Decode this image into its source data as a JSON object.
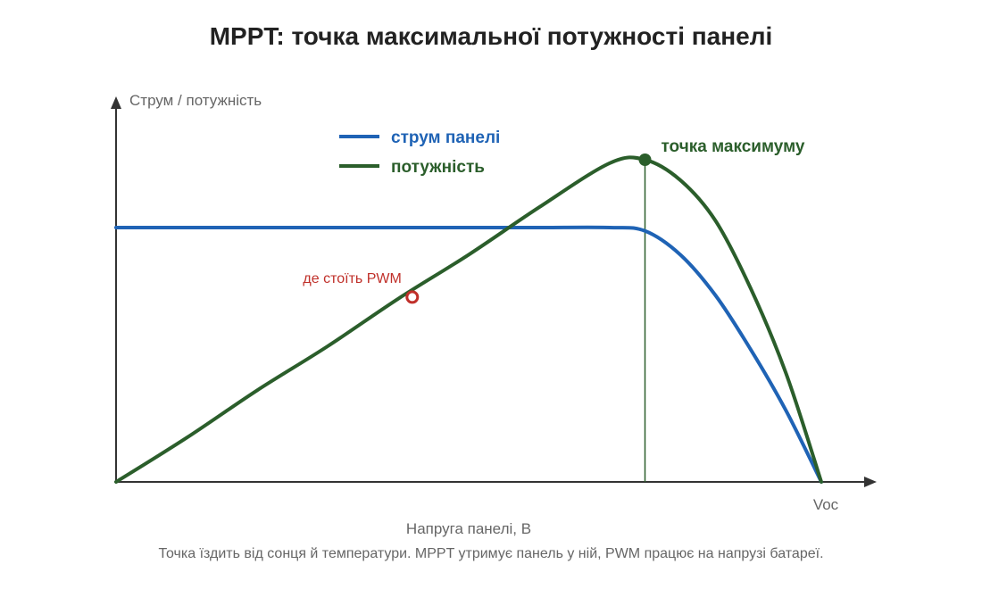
{
  "chart_data": {
    "type": "line",
    "title": "MPPT: точка максимальної потужності панелі",
    "xlabel": "Напруга панелі, В",
    "ylabel": "Струм / потужність",
    "x_tick_label": "Voc",
    "caption": "Точка їздить від сонця й температури. MPPT утримує панель у ній, PWM працює на напрузі батареї.",
    "xlim": [
      0,
      1
    ],
    "ylim": [
      0,
      1
    ],
    "grid": false,
    "legend_position": "top-left",
    "series": [
      {
        "name": "струм панелі",
        "color": "#1f63b5",
        "x": [
          0,
          0.1,
          0.2,
          0.3,
          0.4,
          0.5,
          0.6,
          0.7,
          0.75,
          0.8,
          0.85,
          0.9,
          0.95,
          1.0
        ],
        "y": [
          0.75,
          0.75,
          0.75,
          0.75,
          0.75,
          0.75,
          0.75,
          0.75,
          0.74,
          0.67,
          0.55,
          0.39,
          0.21,
          0.0
        ]
      },
      {
        "name": "потужність",
        "color": "#2b5e2b",
        "x": [
          0,
          0.1,
          0.2,
          0.3,
          0.4,
          0.5,
          0.6,
          0.7,
          0.75,
          0.8,
          0.85,
          0.9,
          0.95,
          1.0
        ],
        "y": [
          0.0,
          0.13,
          0.27,
          0.4,
          0.54,
          0.67,
          0.81,
          0.94,
          0.95,
          0.89,
          0.77,
          0.57,
          0.32,
          0.0
        ]
      }
    ],
    "annotations": {
      "max_point": {
        "label": "точка максимуму",
        "x": 0.75,
        "y": 0.95,
        "color": "#2b5e2b"
      },
      "pwm_point": {
        "label": "де стоїть PWM",
        "x": 0.42,
        "y": 0.545,
        "color": "#c0302a"
      }
    },
    "colors": {
      "axis": "#333333",
      "vertical_marker": "#2b5e2b"
    }
  }
}
